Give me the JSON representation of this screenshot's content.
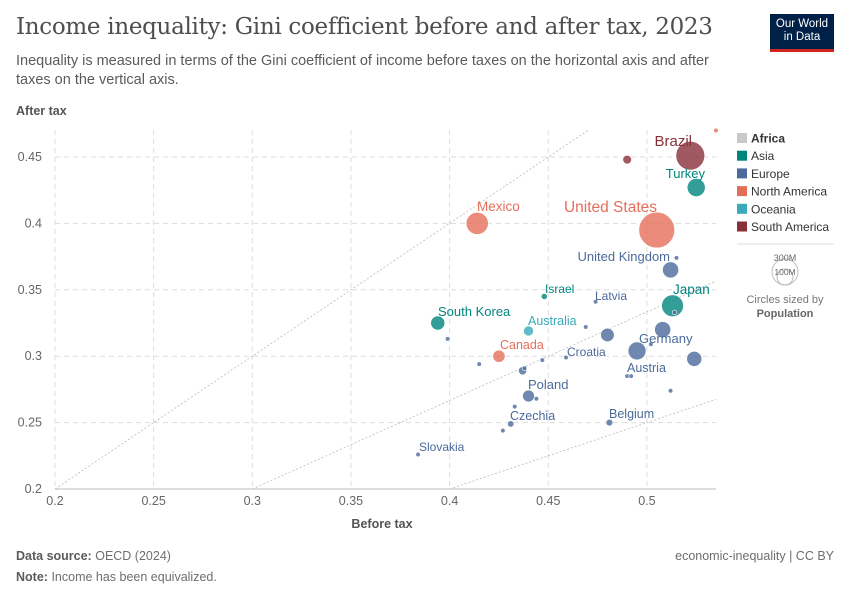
{
  "header": {
    "title": "Income inequality: Gini coefficient before and after tax, 2023",
    "subtitle": "Inequality is measured in terms of the Gini coefficient of income before taxes on the horizontal axis and after taxes on the vertical axis.",
    "logo": "Our World in Data"
  },
  "footer": {
    "source_label": "Data source:",
    "source": "OECD (2024)",
    "note_label": "Note:",
    "note": "Income has been equivalized.",
    "license": "economic-inequality | CC BY"
  },
  "legend": {
    "size_300": "300M",
    "size_100": "100M",
    "sized_by": "Circles sized by",
    "sized_var": "Population"
  },
  "chart_data": {
    "type": "scatter",
    "xlabel": "Before tax",
    "ylabel": "After tax",
    "xlim": [
      0.2,
      0.535
    ],
    "ylim": [
      0.2,
      0.47
    ],
    "xticks": [
      "0.2",
      "0.25",
      "0.3",
      "0.35",
      "0.4",
      "0.45",
      "0.5"
    ],
    "yticks": [
      "0.2",
      "0.25",
      "0.3",
      "0.35",
      "0.4",
      "0.45"
    ],
    "grid": true,
    "legend_position": "right",
    "reference_lines": [
      "y = x",
      "y = 2/3 x",
      "y = 1/2 x"
    ],
    "size_variable": "Population",
    "regions": [
      {
        "name": "Africa",
        "color": "#c9c9c9",
        "bold": true
      },
      {
        "name": "Asia",
        "color": "#00847e"
      },
      {
        "name": "Europe",
        "color": "#4c6a9c"
      },
      {
        "name": "North America",
        "color": "#e56e5a"
      },
      {
        "name": "Oceania",
        "color": "#38aaba"
      },
      {
        "name": "South America",
        "color": "#883039"
      }
    ],
    "points": [
      {
        "label": "Brazil",
        "region": "South America",
        "x": 0.522,
        "y": 0.451,
        "pop": 216
      },
      {
        "label": "",
        "region": "South America",
        "x": 0.49,
        "y": 0.448,
        "pop": 20
      },
      {
        "label": "",
        "region": "North America",
        "x": 0.535,
        "y": 0.47,
        "pop": 5
      },
      {
        "label": "Turkey",
        "region": "Asia",
        "x": 0.525,
        "y": 0.427,
        "pop": 85
      },
      {
        "label": "United States",
        "region": "North America",
        "x": 0.505,
        "y": 0.395,
        "pop": 335
      },
      {
        "label": "Mexico",
        "region": "North America",
        "x": 0.414,
        "y": 0.4,
        "pop": 128
      },
      {
        "label": "",
        "region": "Europe",
        "x": 0.515,
        "y": 0.374,
        "pop": 2
      },
      {
        "label": "United Kingdom",
        "region": "Europe",
        "x": 0.512,
        "y": 0.365,
        "pop": 68
      },
      {
        "label": "Japan",
        "region": "Asia",
        "x": 0.513,
        "y": 0.338,
        "pop": 124
      },
      {
        "label": "",
        "region": "Europe",
        "x": 0.514,
        "y": 0.333,
        "pop": 2
      },
      {
        "label": "Israel",
        "region": "Asia",
        "x": 0.448,
        "y": 0.345,
        "pop": 10
      },
      {
        "label": "Latvia",
        "region": "Europe",
        "x": 0.474,
        "y": 0.341,
        "pop": 2
      },
      {
        "label": "South Korea",
        "region": "Asia",
        "x": 0.394,
        "y": 0.325,
        "pop": 52
      },
      {
        "label": "Australia",
        "region": "Oceania",
        "x": 0.44,
        "y": 0.319,
        "pop": 26
      },
      {
        "label": "",
        "region": "Europe",
        "x": 0.469,
        "y": 0.322,
        "pop": 2
      },
      {
        "label": "",
        "region": "Europe",
        "x": 0.48,
        "y": 0.316,
        "pop": 48
      },
      {
        "label": "",
        "region": "Europe",
        "x": 0.508,
        "y": 0.32,
        "pop": 68
      },
      {
        "label": "",
        "region": "Europe",
        "x": 0.502,
        "y": 0.309,
        "pop": 3
      },
      {
        "label": "Germany",
        "region": "Europe",
        "x": 0.495,
        "y": 0.304,
        "pop": 84
      },
      {
        "label": "",
        "region": "Europe",
        "x": 0.524,
        "y": 0.298,
        "pop": 59
      },
      {
        "label": "",
        "region": "Europe",
        "x": 0.399,
        "y": 0.313,
        "pop": 5
      },
      {
        "label": "Canada",
        "region": "North America",
        "x": 0.425,
        "y": 0.3,
        "pop": 39
      },
      {
        "label": "",
        "region": "Europe",
        "x": 0.415,
        "y": 0.294,
        "pop": 5
      },
      {
        "label": "",
        "region": "Europe",
        "x": 0.447,
        "y": 0.297,
        "pop": 2
      },
      {
        "label": "Croatia",
        "region": "Europe",
        "x": 0.459,
        "y": 0.299,
        "pop": 3
      },
      {
        "label": "",
        "region": "Europe",
        "x": 0.437,
        "y": 0.289,
        "pop": 18
      },
      {
        "label": "",
        "region": "Europe",
        "x": 0.438,
        "y": 0.291,
        "pop": 5
      },
      {
        "label": "Austria",
        "region": "Europe",
        "x": 0.49,
        "y": 0.285,
        "pop": 3
      },
      {
        "label": "",
        "region": "Europe",
        "x": 0.492,
        "y": 0.285,
        "pop": 3
      },
      {
        "label": "",
        "region": "Europe",
        "x": 0.512,
        "y": 0.274,
        "pop": 3
      },
      {
        "label": "Poland",
        "region": "Europe",
        "x": 0.44,
        "y": 0.27,
        "pop": 37
      },
      {
        "label": "",
        "region": "Europe",
        "x": 0.444,
        "y": 0.268,
        "pop": 2
      },
      {
        "label": "",
        "region": "Europe",
        "x": 0.433,
        "y": 0.262,
        "pop": 2
      },
      {
        "label": "Czechia",
        "region": "Europe",
        "x": 0.431,
        "y": 0.249,
        "pop": 11
      },
      {
        "label": "",
        "region": "Europe",
        "x": 0.427,
        "y": 0.244,
        "pop": 2
      },
      {
        "label": "Belgium",
        "region": "Europe",
        "x": 0.481,
        "y": 0.25,
        "pop": 12
      },
      {
        "label": "Slovakia",
        "region": "Europe",
        "x": 0.384,
        "y": 0.226,
        "pop": 5
      }
    ]
  }
}
